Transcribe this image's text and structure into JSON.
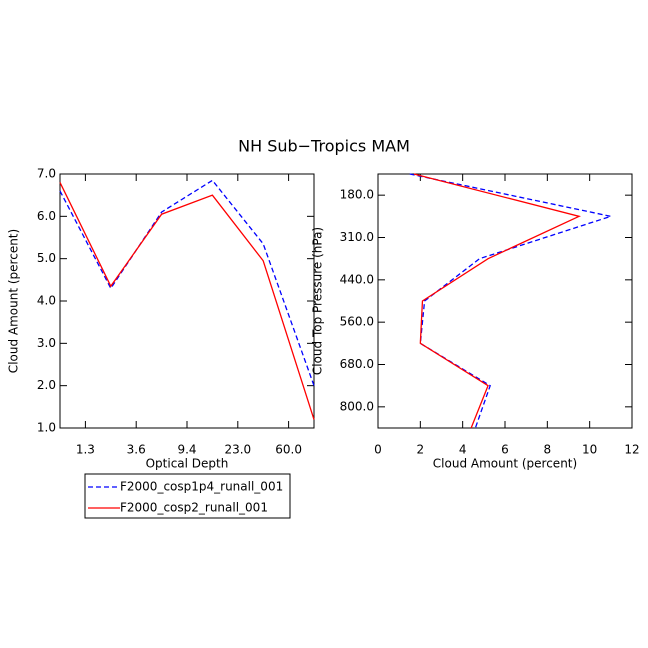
{
  "title": "NH Sub−Tropics MAM",
  "chart_data": [
    {
      "type": "line",
      "orientation": "vertical",
      "xlabel": "Optical Depth",
      "ylabel": "Cloud Amount (percent)",
      "x": [
        0,
        1,
        2,
        3,
        4,
        5
      ],
      "xlim": [
        0,
        5
      ],
      "xticks": [
        {
          "value": 0.5,
          "label": "1.3"
        },
        {
          "value": 1.5,
          "label": "3.6"
        },
        {
          "value": 2.5,
          "label": "9.4"
        },
        {
          "value": 3.5,
          "label": "23.0"
        },
        {
          "value": 4.5,
          "label": "60.0"
        }
      ],
      "ylim": [
        1,
        7
      ],
      "yticks": [
        {
          "value": 1,
          "label": "1.0"
        },
        {
          "value": 2,
          "label": "2.0"
        },
        {
          "value": 3,
          "label": "3.0"
        },
        {
          "value": 4,
          "label": "4.0"
        },
        {
          "value": 5,
          "label": "5.0"
        },
        {
          "value": 6,
          "label": "6.0"
        },
        {
          "value": 7,
          "label": "7.0"
        }
      ],
      "series": [
        {
          "name": "F2000_cosp1p4_runall_001",
          "color": "#0000ff",
          "dashed": true,
          "values": [
            6.6,
            4.3,
            6.1,
            6.85,
            5.35,
            2.0
          ]
        },
        {
          "name": "F2000_cosp2_runall_001",
          "color": "#ff0000",
          "dashed": false,
          "values": [
            6.8,
            4.35,
            6.05,
            6.5,
            4.95,
            1.2
          ]
        }
      ]
    },
    {
      "type": "line",
      "orientation": "horizontal",
      "xlabel": "Cloud Amount (percent)",
      "ylabel": "Cloud Top Pressure (hPa)",
      "y": [
        0,
        1,
        2,
        3,
        4,
        5,
        6
      ],
      "ylim": [
        6,
        0
      ],
      "yticks": [
        {
          "value": 0.5,
          "label": "180.0"
        },
        {
          "value": 1.5,
          "label": "310.0"
        },
        {
          "value": 2.5,
          "label": "440.0"
        },
        {
          "value": 3.5,
          "label": "560.0"
        },
        {
          "value": 4.5,
          "label": "680.0"
        },
        {
          "value": 5.5,
          "label": "800.0"
        }
      ],
      "xlim": [
        0,
        12
      ],
      "xticks": [
        0,
        2,
        4,
        6,
        8,
        10,
        12
      ],
      "series": [
        {
          "color": "#0000ff",
          "dashed": true,
          "values": [
            1.5,
            11.0,
            4.8,
            2.2,
            2.0,
            5.3,
            4.6
          ]
        },
        {
          "color": "#ff0000",
          "dashed": false,
          "values": [
            1.7,
            9.5,
            5.2,
            2.1,
            2.0,
            5.2,
            4.4
          ]
        }
      ]
    }
  ]
}
